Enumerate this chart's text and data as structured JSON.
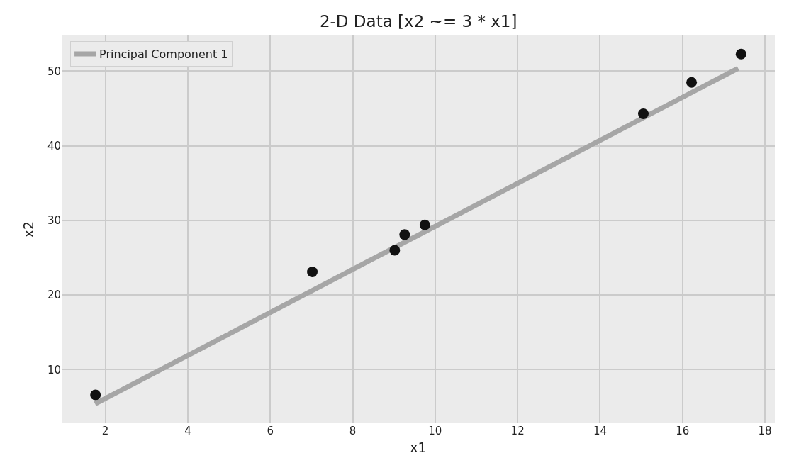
{
  "chart_data": {
    "type": "scatter",
    "title": "2-D Data [x2 ~= 3 * x1]",
    "xlabel": "x1",
    "ylabel": "x2",
    "series": [
      {
        "color": "#111111",
        "marker": "circle",
        "x": [
          1.76,
          7.02,
          9.02,
          9.26,
          9.75,
          15.05,
          16.22,
          17.42
        ],
        "values": [
          6.6,
          23.1,
          26.0,
          28.1,
          29.4,
          44.3,
          48.5,
          52.3
        ]
      },
      {
        "type": "line",
        "name": "Principal Component 1",
        "color": "#a6a6a6",
        "marker": "none",
        "line_style": "solid",
        "x": [
          1.75,
          17.35
        ],
        "values": [
          5.4,
          50.4
        ]
      }
    ],
    "xlim": [
      0.94,
      18.24
    ],
    "ylim": [
      2.8,
      54.8
    ],
    "xticks": [
      2,
      4,
      6,
      8,
      10,
      12,
      14,
      16,
      18
    ],
    "yticks": [
      10,
      20,
      30,
      40,
      50
    ],
    "grid": true,
    "legend": "top left"
  }
}
